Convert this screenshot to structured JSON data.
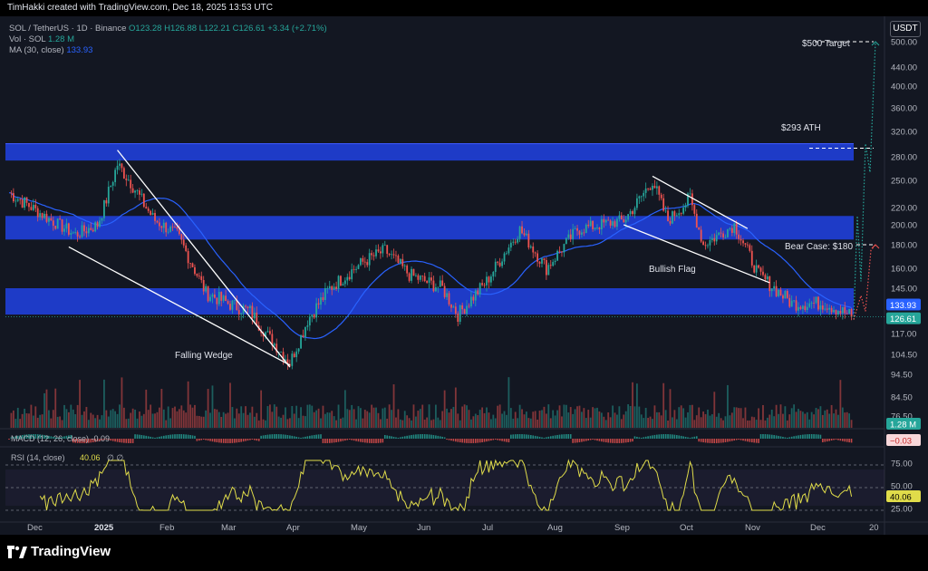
{
  "topbar": {
    "text": "TimHakki created with TradingView.com, Dec 18, 2025 13:53 UTC"
  },
  "legend": {
    "symbol": "SOL / TetherUS · 1D · Binance",
    "ohlc": "O123.28  H126.88  L122.21  C126.61  +3.34 (+2.71%)",
    "vol_label": "Vol · SOL",
    "vol_value": "1.28 M",
    "ma_label": "MA (30, close)",
    "ma_value": "133.93"
  },
  "currency_button": "USDT",
  "price_axis": {
    "ticks": [
      "500.00",
      "440.00",
      "400.00",
      "360.00",
      "320.00",
      "280.00",
      "250.00",
      "220.00",
      "200.00",
      "180.00",
      "160.00",
      "145.00",
      "117.00",
      "104.50",
      "94.50",
      "84.50",
      "76.50"
    ],
    "ma_badge": "133.93",
    "last_badge": "126.61",
    "vol_badge": "1.28 M",
    "macd_badge": "−0.03",
    "rsi_badge": "40.06",
    "rsi_ticks": [
      "75.00",
      "50.00",
      "25.00"
    ]
  },
  "time_axis": [
    "Dec",
    "2025",
    "Feb",
    "Mar",
    "Apr",
    "May",
    "Jun",
    "Jul",
    "Aug",
    "Sep",
    "Oct",
    "Nov",
    "Dec",
    "20"
  ],
  "annotations": {
    "target": "$500 Target",
    "ath": "$293 ATH",
    "bear": "Bear Case: $180",
    "flag": "Bullish Flag",
    "wedge": "Falling Wedge"
  },
  "macd_legend": "MACD (12, 26, close)  -0.09",
  "rsi_legend": "RSI (14, close)",
  "rsi_value": "40.06",
  "rsi_extra": "∅  ∅",
  "footer": {
    "brand": "TradingView"
  },
  "colors": {
    "up": "#26a69a",
    "down": "#ef5350",
    "ma": "#2962ff",
    "zone": "#1f3fd6",
    "rsi": "#e0dc4a",
    "target": "#26a69a",
    "bear": "#ef5350"
  },
  "chart_data": {
    "type": "candlestick",
    "symbol": "SOL/USDT",
    "interval": "1D",
    "y_scale": "log",
    "close_path": [
      [
        "2024-12-01",
        236
      ],
      [
        "2024-12-10",
        222
      ],
      [
        "2024-12-20",
        205
      ],
      [
        "2024-12-31",
        190
      ],
      [
        "2025-01-10",
        200
      ],
      [
        "2025-01-19",
        270
      ],
      [
        "2025-01-25",
        248
      ],
      [
        "2025-02-05",
        205
      ],
      [
        "2025-02-15",
        190
      ],
      [
        "2025-02-28",
        142
      ],
      [
        "2025-03-10",
        135
      ],
      [
        "2025-03-20",
        130
      ],
      [
        "2025-04-07",
        100
      ],
      [
        "2025-04-15",
        125
      ],
      [
        "2025-04-25",
        145
      ],
      [
        "2025-05-10",
        165
      ],
      [
        "2025-05-20",
        175
      ],
      [
        "2025-05-31",
        155
      ],
      [
        "2025-06-15",
        145
      ],
      [
        "2025-06-22",
        128
      ],
      [
        "2025-07-05",
        150
      ],
      [
        "2025-07-20",
        195
      ],
      [
        "2025-08-01",
        160
      ],
      [
        "2025-08-15",
        195
      ],
      [
        "2025-08-25",
        200
      ],
      [
        "2025-09-05",
        205
      ],
      [
        "2025-09-18",
        250
      ],
      [
        "2025-09-25",
        205
      ],
      [
        "2025-10-05",
        230
      ],
      [
        "2025-10-11",
        180
      ],
      [
        "2025-10-25",
        200
      ],
      [
        "2025-11-05",
        155
      ],
      [
        "2025-11-20",
        135
      ],
      [
        "2025-12-05",
        135
      ],
      [
        "2025-12-18",
        126.61
      ]
    ],
    "last": {
      "open": 123.28,
      "high": 126.88,
      "low": 122.21,
      "close": 126.61,
      "change": 3.34,
      "change_pct": 2.71
    },
    "ma30_last": 133.93,
    "zones": [
      [
        275,
        300
      ],
      [
        185,
        210
      ],
      [
        128,
        145
      ]
    ],
    "levels": {
      "target": 500,
      "ath": 293,
      "bear_case": 180
    },
    "rsi_last": 40.06,
    "macd_last": -0.03
  }
}
